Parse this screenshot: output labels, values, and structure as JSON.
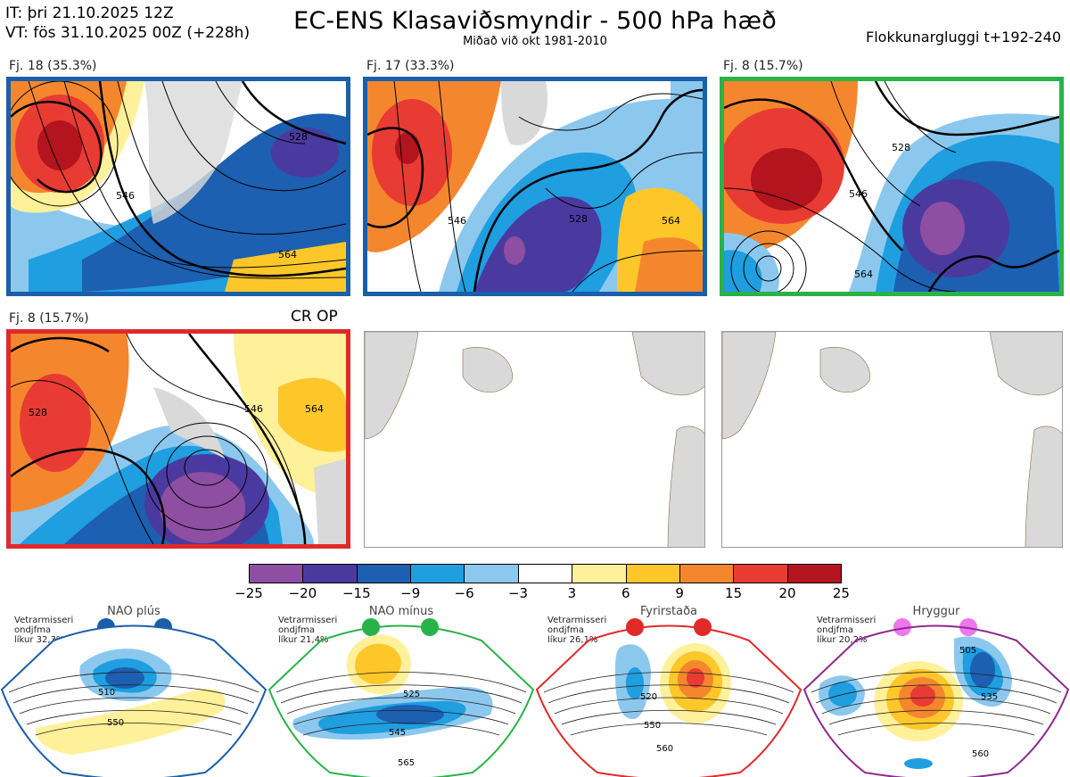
{
  "header": {
    "it_line": "IT: þri 21.10.2025 12Z",
    "vt_line": "VT: fös 31.10.2025 00Z  (+228h)",
    "title": "EC-ENS Klasaviðsmyndir - 500 hPa hæð",
    "subtitle": "Miðað við okt 1981-2010",
    "window": "Flokkunargluggi t+192-240"
  },
  "panels": [
    {
      "label": "Fj. 18 (35.3%)",
      "border_color": "#1a5fa8",
      "contours": [
        "546",
        "564",
        "528"
      ]
    },
    {
      "label": "Fj. 17 (33.3%)",
      "border_color": "#1a5fa8",
      "contours": [
        "546",
        "528",
        "564"
      ]
    },
    {
      "label": "Fj. 8 (15.7%)",
      "border_color": "#2ab24a",
      "contours": [
        "546",
        "528",
        "564"
      ]
    },
    {
      "label": "Fj. 8 (15.7%)",
      "border_color": "#e02a2a",
      "extra_label": "CR OP",
      "contours": [
        "528",
        "546",
        "564"
      ]
    }
  ],
  "colorbar": {
    "ticks": [
      "−25",
      "−20",
      "−15",
      "−9",
      "−6",
      "−3",
      "3",
      "6",
      "9",
      "15",
      "20",
      "25"
    ],
    "colors": [
      "#8e4ea2",
      "#4a3aa0",
      "#1d5fb0",
      "#1f9ee0",
      "#8cc8ee",
      "#ffffff",
      "#fff09a",
      "#fdc72a",
      "#f4872e",
      "#e83b33",
      "#b3141d"
    ]
  },
  "regimes": [
    {
      "name": "NAO plús",
      "color": "#1a5fa8",
      "text": [
        "Vetrarmisseri",
        "ondjfma",
        "líkur 32,3%"
      ],
      "contours": [
        "510",
        "550"
      ]
    },
    {
      "name": "NAO mínus",
      "color": "#2ab24a",
      "text": [
        "Vetrarmisseri",
        "ondjfma",
        "líkur 21,4%"
      ],
      "contours": [
        "525",
        "545",
        "565"
      ]
    },
    {
      "name": "Fyrirstaða",
      "color": "#e02a2a",
      "text": [
        "Vetrarmisseri",
        "ondjfma",
        "líkur 26,1%"
      ],
      "contours": [
        "520",
        "550",
        "560"
      ]
    },
    {
      "name": "Hryggur",
      "color": "#ee77ee",
      "text": [
        "Vetrarmisseri",
        "ondjfma",
        "líkur 20,2%"
      ],
      "contours": [
        "505",
        "535",
        "560"
      ]
    }
  ]
}
